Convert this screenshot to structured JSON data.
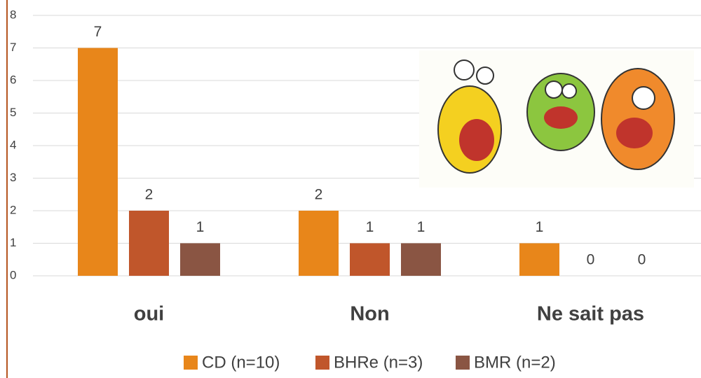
{
  "chart_data": {
    "type": "bar",
    "categories": [
      "oui",
      "Non",
      "Ne sait pas"
    ],
    "series": [
      {
        "name": "CD (n=10)",
        "color": "#e8861a",
        "values": [
          7,
          2,
          1
        ]
      },
      {
        "name": "BHRe (n=3)",
        "color": "#c0562b",
        "values": [
          2,
          1,
          0
        ]
      },
      {
        "name": "BMR (n=2)",
        "color": "#8a5543",
        "values": [
          1,
          1,
          0
        ]
      }
    ],
    "ylim": [
      0,
      8
    ],
    "yticks": [
      0,
      1,
      2,
      3,
      4,
      5,
      6,
      7,
      8
    ],
    "grid": true,
    "legend": "bottom"
  }
}
